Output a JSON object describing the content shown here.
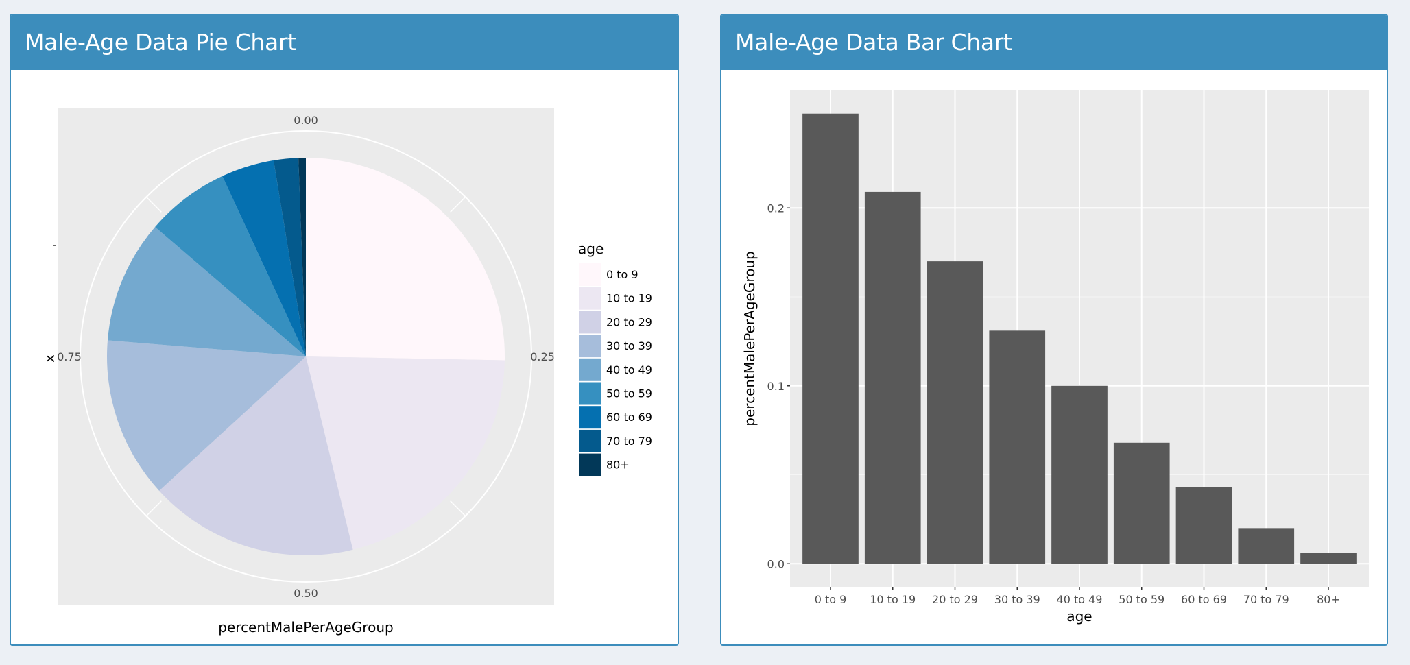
{
  "panels": {
    "pie_title": "Male-Age Data Pie Chart",
    "bar_title": "Male-Age Data Bar Chart"
  },
  "chart_data": [
    {
      "type": "pie",
      "title": "Male-Age Data Pie Chart",
      "xlabel": "percentMalePerAgeGroup",
      "ylabel": "x",
      "theta_ticks": [
        0.0,
        0.25,
        0.5,
        0.75
      ],
      "theta_tick_labels": [
        "0.00",
        "0.25",
        "0.50",
        "0.75"
      ],
      "legend_title": "age",
      "legend_position": "right",
      "categories": [
        "0 to 9",
        "10 to 19",
        "20 to 29",
        "30 to 39",
        "40 to 49",
        "50 to 59",
        "60 to 69",
        "70 to 79",
        "80+"
      ],
      "values": [
        0.253,
        0.209,
        0.17,
        0.131,
        0.1,
        0.068,
        0.043,
        0.02,
        0.006
      ],
      "colors": [
        "#fff7fb",
        "#ece7f2",
        "#d0d1e6",
        "#a6bddb",
        "#74a9cf",
        "#3690c0",
        "#0570b0",
        "#045a8d",
        "#023858"
      ]
    },
    {
      "type": "bar",
      "title": "Male-Age Data Bar Chart",
      "xlabel": "age",
      "ylabel": "percentMalePerAgeGroup",
      "categories": [
        "0 to 9",
        "10 to 19",
        "20 to 29",
        "30 to 39",
        "40 to 49",
        "50 to 59",
        "60 to 69",
        "70 to 79",
        "80+"
      ],
      "values": [
        0.253,
        0.209,
        0.17,
        0.131,
        0.1,
        0.068,
        0.043,
        0.02,
        0.006
      ],
      "ylim": [
        -0.013,
        0.266
      ],
      "y_ticks": [
        0.0,
        0.1,
        0.2
      ],
      "y_tick_labels": [
        "0.0",
        "0.1",
        "0.2"
      ],
      "grid": true,
      "bar_color": "#595959"
    }
  ]
}
